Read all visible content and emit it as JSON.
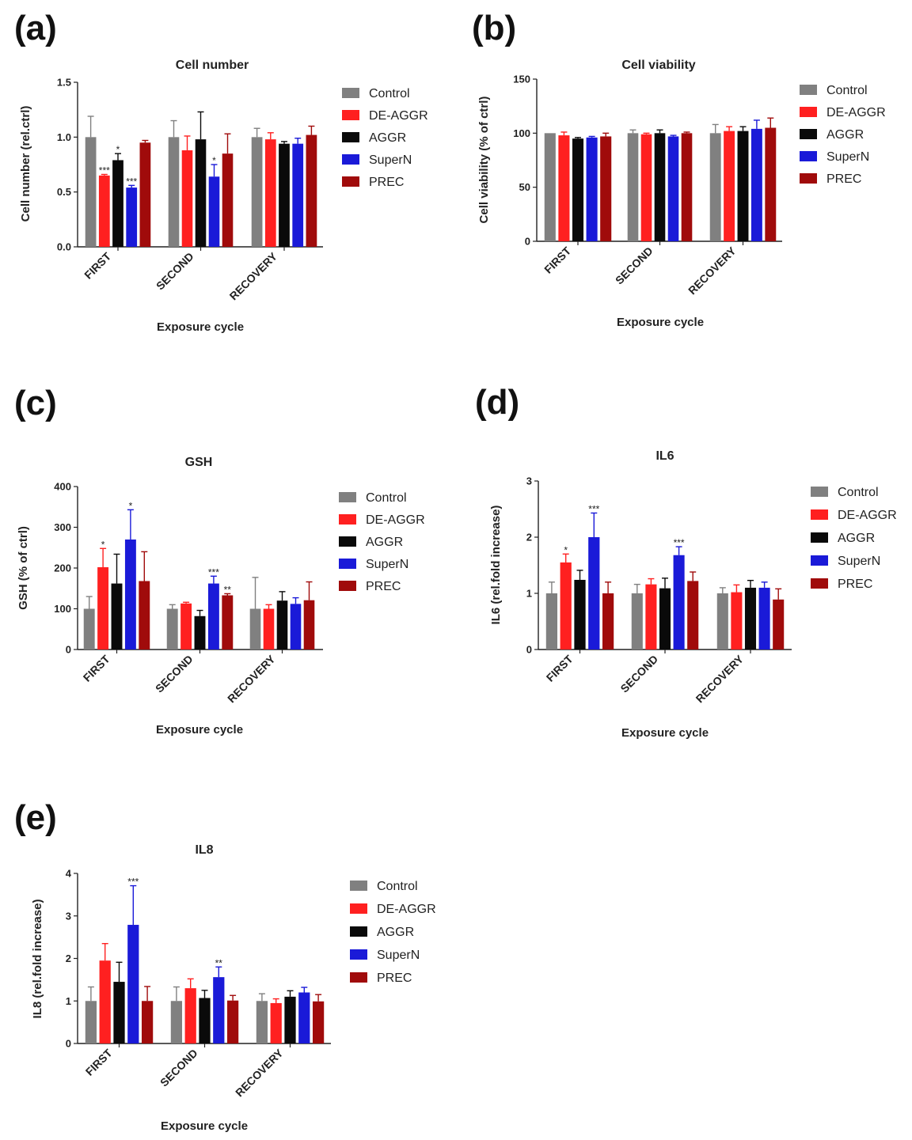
{
  "figure": {
    "colors": {
      "Control": "#808080",
      "DE-AGGR": "#ff2020",
      "AGGR": "#0a0a0a",
      "SuperN": "#1a1ad8",
      "PREC": "#a00b0b"
    }
  },
  "chart_data": [
    {
      "panel": "(a)",
      "type": "bar",
      "title": "Cell number",
      "xlabel": "Exposure cycle",
      "ylabel": "Cell number (rel.ctrl)",
      "ylim": [
        0,
        1.5
      ],
      "yticks": [
        "0.0",
        "0.5",
        "1.0",
        "1.5"
      ],
      "categories": [
        "FIRST",
        "SECOND",
        "RECOVERY"
      ],
      "series": [
        {
          "name": "Control",
          "values": [
            1.0,
            1.0,
            1.0
          ],
          "errors": [
            0.19,
            0.15,
            0.08
          ],
          "sig": [
            "",
            "",
            ""
          ]
        },
        {
          "name": "DE-AGGR",
          "values": [
            0.65,
            0.88,
            0.98
          ],
          "errors": [
            0.01,
            0.13,
            0.06
          ],
          "sig": [
            "***",
            "",
            ""
          ]
        },
        {
          "name": "AGGR",
          "values": [
            0.79,
            0.98,
            0.94
          ],
          "errors": [
            0.06,
            0.25,
            0.02
          ],
          "sig": [
            "*",
            "",
            ""
          ]
        },
        {
          "name": "SuperN",
          "values": [
            0.54,
            0.64,
            0.94
          ],
          "errors": [
            0.02,
            0.11,
            0.05
          ],
          "sig": [
            "***",
            "*",
            ""
          ]
        },
        {
          "name": "PREC",
          "values": [
            0.95,
            0.85,
            1.02
          ],
          "errors": [
            0.02,
            0.18,
            0.08
          ],
          "sig": [
            "",
            "",
            ""
          ]
        }
      ]
    },
    {
      "panel": "(b)",
      "type": "bar",
      "title": "Cell viability",
      "xlabel": "Exposure cycle",
      "ylabel": "Cell viability (% of ctrl)",
      "ylim": [
        0,
        150
      ],
      "yticks": [
        "0",
        "50",
        "100",
        "150"
      ],
      "categories": [
        "FIRST",
        "SECOND",
        "RECOVERY"
      ],
      "series": [
        {
          "name": "Control",
          "values": [
            100,
            100,
            100
          ],
          "errors": [
            0,
            3,
            8
          ],
          "sig": [
            "",
            "",
            ""
          ]
        },
        {
          "name": "DE-AGGR",
          "values": [
            98,
            99,
            102
          ],
          "errors": [
            3,
            1,
            4
          ],
          "sig": [
            "",
            "",
            ""
          ]
        },
        {
          "name": "AGGR",
          "values": [
            95,
            100,
            102
          ],
          "errors": [
            1,
            3,
            4
          ],
          "sig": [
            "",
            "",
            ""
          ]
        },
        {
          "name": "SuperN",
          "values": [
            96,
            97,
            104
          ],
          "errors": [
            1,
            1,
            8
          ],
          "sig": [
            "",
            "",
            ""
          ]
        },
        {
          "name": "PREC",
          "values": [
            97,
            100,
            105
          ],
          "errors": [
            3,
            1,
            9
          ],
          "sig": [
            "",
            "",
            ""
          ]
        }
      ]
    },
    {
      "panel": "(c)",
      "type": "bar",
      "title": "GSH",
      "xlabel": "Exposure cycle",
      "ylabel": "GSH (% of ctrl)",
      "ylim": [
        0,
        400
      ],
      "yticks": [
        "0",
        "100",
        "200",
        "300",
        "400"
      ],
      "categories": [
        "FIRST",
        "SECOND",
        "RECOVERY"
      ],
      "series": [
        {
          "name": "Control",
          "values": [
            100,
            100,
            100
          ],
          "errors": [
            30,
            10,
            77
          ],
          "sig": [
            "",
            "",
            ""
          ]
        },
        {
          "name": "DE-AGGR",
          "values": [
            202,
            113,
            100
          ],
          "errors": [
            46,
            3,
            10
          ],
          "sig": [
            "*",
            "",
            ""
          ]
        },
        {
          "name": "AGGR",
          "values": [
            162,
            82,
            120
          ],
          "errors": [
            72,
            14,
            22
          ],
          "sig": [
            "",
            "",
            ""
          ]
        },
        {
          "name": "SuperN",
          "values": [
            270,
            162,
            112
          ],
          "errors": [
            73,
            18,
            15
          ],
          "sig": [
            "*",
            "***",
            ""
          ]
        },
        {
          "name": "PREC",
          "values": [
            168,
            133,
            121
          ],
          "errors": [
            72,
            4,
            45
          ],
          "sig": [
            "",
            "**",
            ""
          ]
        }
      ]
    },
    {
      "panel": "(d)",
      "type": "bar",
      "title": "IL6",
      "xlabel": "Exposure cycle",
      "ylabel": "IL6 (rel.fold increase)",
      "ylim": [
        0,
        3
      ],
      "yticks": [
        "0",
        "1",
        "2",
        "3"
      ],
      "categories": [
        "FIRST",
        "SECOND",
        "RECOVERY"
      ],
      "series": [
        {
          "name": "Control",
          "values": [
            1.0,
            1.0,
            1.0
          ],
          "errors": [
            0.2,
            0.16,
            0.1
          ],
          "sig": [
            "",
            "",
            ""
          ]
        },
        {
          "name": "DE-AGGR",
          "values": [
            1.55,
            1.16,
            1.02
          ],
          "errors": [
            0.15,
            0.1,
            0.13
          ],
          "sig": [
            "*",
            "",
            ""
          ]
        },
        {
          "name": "AGGR",
          "values": [
            1.24,
            1.09,
            1.1
          ],
          "errors": [
            0.17,
            0.18,
            0.13
          ],
          "sig": [
            "",
            "",
            ""
          ]
        },
        {
          "name": "SuperN",
          "values": [
            2.0,
            1.68,
            1.1
          ],
          "errors": [
            0.43,
            0.15,
            0.1
          ],
          "sig": [
            "***",
            "***",
            ""
          ]
        },
        {
          "name": "PREC",
          "values": [
            1.0,
            1.22,
            0.89
          ],
          "errors": [
            0.2,
            0.16,
            0.19
          ],
          "sig": [
            "",
            "",
            ""
          ]
        }
      ]
    },
    {
      "panel": "(e)",
      "type": "bar",
      "title": "IL8",
      "xlabel": "Exposure cycle",
      "ylabel": "IL8 (rel.fold increase)",
      "ylim": [
        0,
        4
      ],
      "yticks": [
        "0",
        "1",
        "2",
        "3",
        "4"
      ],
      "categories": [
        "FIRST",
        "SECOND",
        "RECOVERY"
      ],
      "series": [
        {
          "name": "Control",
          "values": [
            1.0,
            1.0,
            1.0
          ],
          "errors": [
            0.33,
            0.33,
            0.17
          ],
          "sig": [
            "",
            "",
            ""
          ]
        },
        {
          "name": "DE-AGGR",
          "values": [
            1.95,
            1.3,
            0.95
          ],
          "errors": [
            0.4,
            0.22,
            0.1
          ],
          "sig": [
            "",
            "",
            ""
          ]
        },
        {
          "name": "AGGR",
          "values": [
            1.45,
            1.07,
            1.1
          ],
          "errors": [
            0.46,
            0.18,
            0.14
          ],
          "sig": [
            "",
            "",
            ""
          ]
        },
        {
          "name": "SuperN",
          "values": [
            2.79,
            1.56,
            1.2
          ],
          "errors": [
            0.92,
            0.24,
            0.12
          ],
          "sig": [
            "***",
            "**",
            ""
          ]
        },
        {
          "name": "PREC",
          "values": [
            1.0,
            1.01,
            0.99
          ],
          "errors": [
            0.34,
            0.12,
            0.16
          ],
          "sig": [
            "",
            "",
            ""
          ]
        }
      ]
    }
  ]
}
